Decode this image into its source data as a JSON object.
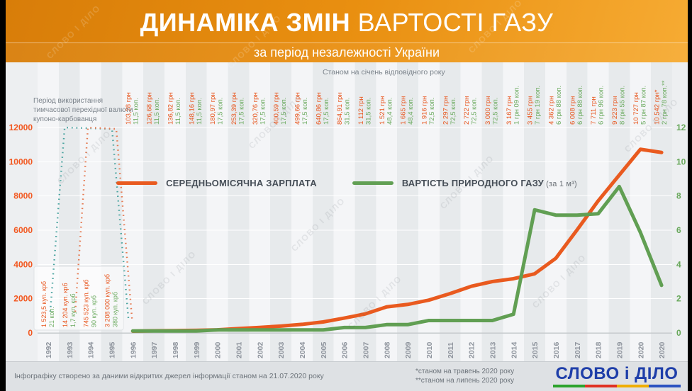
{
  "header": {
    "title_bold": "ДИНАМІКА ЗМІН",
    "title_rest": " ВАРТОСТІ ГАЗУ",
    "subtitle": "за період незалежності України"
  },
  "annotations": {
    "krb_period_note": "Період використання тимчасової перехідної валюти купоно-карбованця",
    "as_of_note": "Станом на січень відповідного року"
  },
  "legend": {
    "salary": "СЕРЕДНЬОМІСЯЧНА ЗАРПЛАТА",
    "gas": "ВАРТІСТЬ ПРИРОДНОГО ГАЗУ",
    "gas_suffix": " (за 1 м³)"
  },
  "footer": {
    "source_note": "Інфографіку створено за даними відкритих джерел інформації станом на 21.07.2020 року",
    "footnote_may": "*станом на травень 2020 року",
    "footnote_july": "**станом на липень 2020 року",
    "logo_text": "СЛОВО і ДІЛО"
  },
  "watermark": "СЛОВО І ДІЛО",
  "colors": {
    "salary_line": "#e95a1f",
    "gas_line": "#619f53",
    "salary_dotted": "#e57a52",
    "gas_dotted": "#4aa4a0",
    "left_axis_ticks": "#f2571f",
    "right_axis_ticks": "#68a85b",
    "year_labels": "#8d939c",
    "logo_blue": "#1e3ea9",
    "logo_underline": [
      "#2ca32c",
      "#e03222",
      "#f0ae00",
      "#2b52c0"
    ]
  },
  "chart_data": {
    "type": "line",
    "title": "ДИНАМІКА ЗМІН ВАРТОСТІ ГАЗУ за період незалежності України",
    "x_note": "Станом на січень відповідного року",
    "years": [
      "1992",
      "1993",
      "1994",
      "1995",
      "1996",
      "1997",
      "1998",
      "1999",
      "2000",
      "2001",
      "2002",
      "2003",
      "2004",
      "2005",
      "2006",
      "2007",
      "2008",
      "2009",
      "2010",
      "2011",
      "2012",
      "2013",
      "2014",
      "2015",
      "2016",
      "2017",
      "2018",
      "2019",
      "2020",
      "2020"
    ],
    "left_axis": {
      "min": 0,
      "max": 12000,
      "step": 2000,
      "ticks": [
        "0",
        "2000",
        "4000",
        "6000",
        "8000",
        "10000",
        "12000"
      ]
    },
    "right_axis": {
      "min": 0,
      "max": 12,
      "step": 2,
      "ticks": [
        "0",
        "2",
        "4",
        "6",
        "8",
        "10",
        "12"
      ]
    },
    "series": [
      {
        "name": "СЕРЕДНЬОМІСЯЧНА ЗАРПЛАТА",
        "axis": "left",
        "color": "#e95a1f",
        "start_year": "1996",
        "values": [
          103.28,
          126.68,
          136.82,
          148.16,
          180.97,
          253.39,
          320.76,
          400.59,
          499.66,
          640.86,
          864.91,
          1112,
          1521,
          1665,
          1916,
          2297,
          2722,
          3000,
          3167,
          3455,
          4362,
          6008,
          7711,
          9223,
          10727,
          10542
        ]
      },
      {
        "name": "ВАРТІСТЬ ПРИРОДНОГО ГАЗУ (за 1 м³), грн",
        "axis": "right",
        "color": "#619f53",
        "start_year": "1996",
        "values": [
          0.115,
          0.115,
          0.115,
          0.115,
          0.175,
          0.175,
          0.175,
          0.175,
          0.175,
          0.175,
          0.315,
          0.315,
          0.484,
          0.484,
          0.725,
          0.725,
          0.725,
          0.725,
          1.09,
          7.19,
          6.88,
          6.88,
          6.96,
          8.55,
          5.87,
          2.78
        ]
      }
    ],
    "column_labels": [
      {
        "year": "1996",
        "salary": "103,28 грн",
        "gas": "11,5 коп."
      },
      {
        "year": "1997",
        "salary": "126,68 грн",
        "gas": "11,5 коп."
      },
      {
        "year": "1998",
        "salary": "136,82 грн",
        "gas": "11,5 коп."
      },
      {
        "year": "1999",
        "salary": "148,16 грн",
        "gas": "11,5 коп."
      },
      {
        "year": "2000",
        "salary": "180,97 грн",
        "gas": "17,5 коп."
      },
      {
        "year": "2001",
        "salary": "253,39 грн",
        "gas": "17,5 коп."
      },
      {
        "year": "2002",
        "salary": "320,76 грн",
        "gas": "17,5 коп."
      },
      {
        "year": "2003",
        "salary": "400,59 грн",
        "gas": "17,5 коп."
      },
      {
        "year": "2004",
        "salary": "499,66 грн",
        "gas": "17,5 коп."
      },
      {
        "year": "2005",
        "salary": "640,86 грн",
        "gas": "17,5 коп."
      },
      {
        "year": "2006",
        "salary": "864,91 грн",
        "gas": "31,5 коп."
      },
      {
        "year": "2007",
        "salary": "1 112 грн",
        "gas": "31,5 коп."
      },
      {
        "year": "2008",
        "salary": "1 521 грн",
        "gas": "48,4 коп."
      },
      {
        "year": "2009",
        "salary": "1 665 грн",
        "gas": "48,4 коп."
      },
      {
        "year": "2010",
        "salary": "1 916 грн",
        "gas": "72,5 коп."
      },
      {
        "year": "2011",
        "salary": "2 297 грн",
        "gas": "72,5 коп."
      },
      {
        "year": "2012",
        "salary": "2 722 грн",
        "gas": "72,5 коп."
      },
      {
        "year": "2013",
        "salary": "3 000 грн",
        "gas": "72,5 коп."
      },
      {
        "year": "2014",
        "salary": "3 167 грн",
        "gas": "1 грн 09 коп."
      },
      {
        "year": "2015",
        "salary": "3 455 грн",
        "gas": "7 грн 19 коп."
      },
      {
        "year": "2016",
        "salary": "4 362 грн",
        "gas": "6 грн 88 коп."
      },
      {
        "year": "2017",
        "salary": "6 008 грн",
        "gas": "6 грн 88 коп."
      },
      {
        "year": "2018",
        "salary": "7 711 грн",
        "gas": "6 грн 96 коп."
      },
      {
        "year": "2019",
        "salary": "9 223 грн",
        "gas": "8 грн 55 коп."
      },
      {
        "year": "2020",
        "salary": "10 727 грн",
        "gas": "5 грн 87 коп."
      },
      {
        "year": "2020",
        "salary": "10 542 грн*",
        "gas": "2 грн 78 коп.**"
      }
    ],
    "krb_columns": [
      {
        "year": "1992",
        "salary": "1 523,5 куп. крб",
        "gas": "21 коп."
      },
      {
        "year": "1993",
        "salary": "14 204 куп. крб",
        "gas": "1,7 куп. крб"
      },
      {
        "year": "1994",
        "salary": "745 523 куп. крб",
        "gas": "90 куп. крб"
      },
      {
        "year": "1995",
        "salary": "3 208 000 куп. крб",
        "gas": "380 куп. крб"
      }
    ]
  }
}
